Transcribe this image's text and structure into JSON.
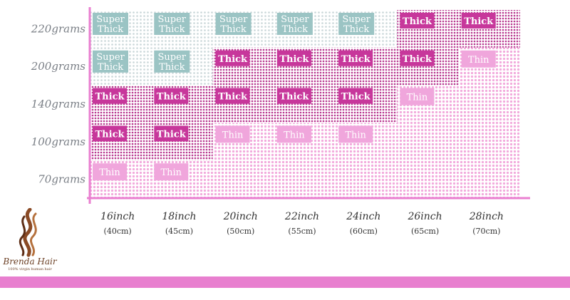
{
  "chart_data": {
    "type": "table",
    "rows": [
      "220grams",
      "200grams",
      "140grams",
      "100grams",
      "70grams"
    ],
    "columns": [
      {
        "length": "16inch",
        "metric": "(40cm)"
      },
      {
        "length": "18inch",
        "metric": "(45cm)"
      },
      {
        "length": "20inch",
        "metric": "(50cm)"
      },
      {
        "length": "22inch",
        "metric": "(55cm)"
      },
      {
        "length": "24inch",
        "metric": "(60cm)"
      },
      {
        "length": "26inch",
        "metric": "(65cm)"
      },
      {
        "length": "28inch",
        "metric": "(70cm)"
      }
    ],
    "cells": [
      [
        "Super Thick",
        "Super Thick",
        "Super Thick",
        "Super Thick",
        "Super Thick",
        "Thick",
        "Thick"
      ],
      [
        "Super Thick",
        "Super Thick",
        "Thick",
        "Thick",
        "Thick",
        "Thick",
        "Thin"
      ],
      [
        "Thick",
        "Thick",
        "Thick",
        "Thick",
        "Thick",
        "Thin",
        ""
      ],
      [
        "Thick",
        "Thick",
        "Thin",
        "Thin",
        "Thin",
        "",
        ""
      ],
      [
        "Thin",
        "Thin",
        "",
        "",
        "",
        "",
        ""
      ]
    ],
    "colors": {
      "super_thick": "#9bc4c4",
      "thick": "#c7379b",
      "thin": "#f0a6dc",
      "grey_dot": "#c9d6d8",
      "magenta_dot": "#b8388f",
      "pink_dot": "#f2a9dc",
      "axis": "#ea7fd0"
    }
  },
  "brand": {
    "name": "Brenda Hair",
    "tagline": "100% virgin human hair"
  }
}
